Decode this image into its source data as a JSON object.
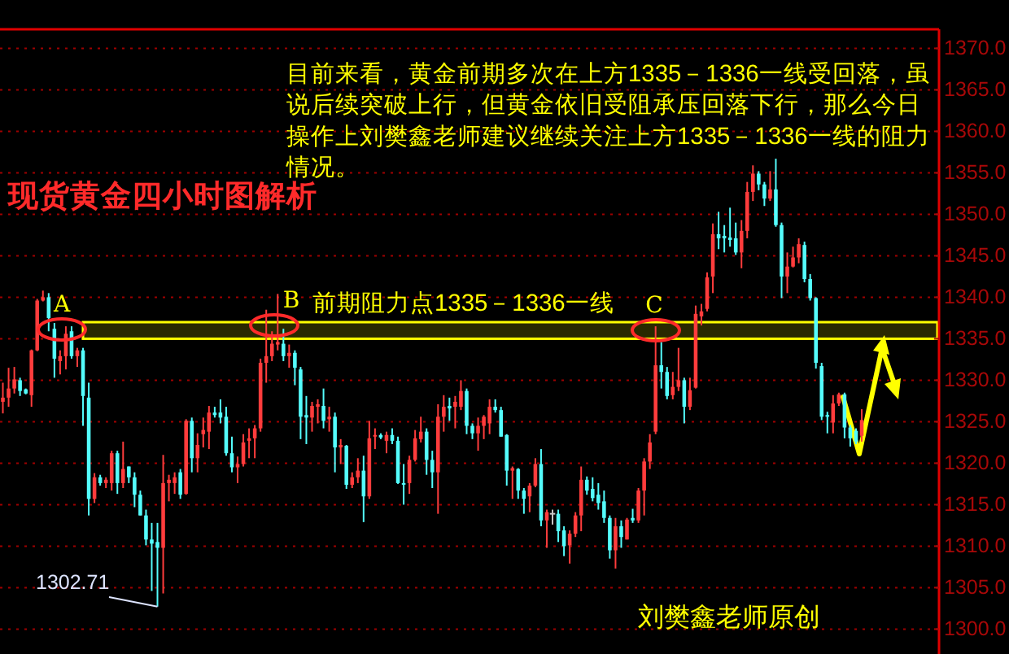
{
  "chart_data": {
    "type": "candlestick",
    "title": "现货黄金四小时图解析",
    "categories": [
      null,
      null,
      null,
      null,
      null,
      null,
      null,
      null,
      null,
      null,
      null,
      null,
      null,
      null,
      null,
      null,
      null,
      null,
      null,
      null,
      null,
      null,
      null,
      null,
      null,
      null,
      null,
      null,
      null,
      null,
      null,
      null,
      null,
      null,
      null,
      null,
      null,
      null,
      null,
      null,
      null,
      null,
      null,
      null,
      null,
      null,
      null,
      null,
      null,
      null,
      null,
      null,
      null,
      null,
      null,
      null,
      null,
      null,
      null,
      null,
      null,
      null,
      null,
      null,
      null,
      null,
      null,
      null,
      null,
      null,
      null,
      null,
      null,
      null,
      null,
      null,
      null,
      null,
      null,
      null,
      null,
      null,
      null,
      null,
      null,
      null,
      null,
      null,
      null,
      null,
      null,
      null,
      null,
      null,
      null,
      null,
      null,
      null,
      null,
      null,
      null,
      null,
      null,
      null,
      null,
      null,
      null,
      null,
      null,
      null,
      null,
      null,
      null,
      null,
      null,
      null,
      null,
      null,
      null,
      null,
      null,
      null,
      null,
      null,
      null,
      null,
      null,
      null,
      null,
      null,
      null,
      null,
      null,
      null,
      null,
      null,
      null,
      null,
      null,
      null,
      null,
      null,
      null,
      null,
      null,
      null,
      null,
      null,
      null,
      null,
      null,
      null,
      null,
      null,
      null,
      null,
      null,
      null,
      null,
      null,
      null,
      null,
      null,
      null
    ],
    "ohlc": [
      [
        1327.4,
        1329.7,
        1326.0,
        1327.9
      ],
      [
        1327.9,
        1331.5,
        1326.8,
        1329.0
      ],
      [
        1329.0,
        1331.6,
        1328.4,
        1330.1
      ],
      [
        1330.0,
        1330.3,
        1328.1,
        1328.7
      ],
      [
        1328.9,
        1329.0,
        1328.3,
        1328.4
      ],
      [
        1328.2,
        1333.7,
        1326.8,
        1333.6
      ],
      [
        1333.6,
        1339.8,
        1333.5,
        1339.6
      ],
      [
        1339.6,
        1340.8,
        1339.5,
        1340.0
      ],
      [
        1340.0,
        1340.5,
        1335.9,
        1337.5
      ],
      [
        1336.2,
        1336.9,
        1330.3,
        1332.6
      ],
      [
        1332.3,
        1333.6,
        1330.7,
        1332.9
      ],
      [
        1332.9,
        1336.5,
        1331.3,
        1335.6
      ],
      [
        1335.9,
        1336.5,
        1332.6,
        1332.9
      ],
      [
        1332.9,
        1333.9,
        1331.6,
        1333.6
      ],
      [
        1333.6,
        1333.9,
        1324.5,
        1328.1
      ],
      [
        1327.9,
        1329.7,
        1313.7,
        1315.7
      ],
      [
        1315.7,
        1318.8,
        1315.2,
        1318.3
      ],
      [
        1318.3,
        1318.6,
        1317.3,
        1317.6
      ],
      [
        1317.6,
        1318.3,
        1317.0,
        1318.0
      ],
      [
        1317.6,
        1321.5,
        1316.7,
        1321.2
      ],
      [
        1321.2,
        1321.5,
        1316.3,
        1317.6
      ],
      [
        1317.6,
        1322.6,
        1317.0,
        1319.3
      ],
      [
        1319.6,
        1319.6,
        1317.6,
        1318.3
      ],
      [
        1318.3,
        1318.9,
        1314.7,
        1316.2
      ],
      [
        1316.2,
        1316.7,
        1313.7,
        1313.7
      ],
      [
        1313.7,
        1314.4,
        1310.1,
        1310.8
      ],
      [
        1310.8,
        1312.8,
        1304.6,
        1310.3
      ],
      [
        1310.5,
        1312.8,
        1302.71,
        1309.8
      ],
      [
        1309.8,
        1321.0,
        1304.3,
        1317.6
      ],
      [
        1317.6,
        1318.6,
        1315.4,
        1318.0
      ],
      [
        1317.6,
        1318.9,
        1316.3,
        1318.3
      ],
      [
        1318.9,
        1319.3,
        1315.7,
        1316.2
      ],
      [
        1316.3,
        1325.3,
        1316.2,
        1325.1
      ],
      [
        1325.1,
        1325.5,
        1318.9,
        1320.6
      ],
      [
        1320.6,
        1323.6,
        1318.9,
        1322.2
      ],
      [
        1323.5,
        1325.5,
        1321.9,
        1324.0
      ],
      [
        1323.8,
        1326.9,
        1321.7,
        1326.1
      ],
      [
        1326.1,
        1326.8,
        1325.5,
        1325.8
      ],
      [
        1326.1,
        1327.7,
        1324.8,
        1325.5
      ],
      [
        1325.6,
        1326.8,
        1320.9,
        1321.2
      ],
      [
        1321.2,
        1323.2,
        1318.9,
        1319.5
      ],
      [
        1319.5,
        1320.8,
        1317.6,
        1319.9
      ],
      [
        1319.9,
        1323.5,
        1319.6,
        1322.5
      ],
      [
        1322.7,
        1324.2,
        1320.6,
        1323.0
      ],
      [
        1323.0,
        1324.6,
        1320.6,
        1324.2
      ],
      [
        1324.2,
        1332.6,
        1323.8,
        1332.1
      ],
      [
        1332.1,
        1338.5,
        1329.7,
        1332.9
      ],
      [
        1332.9,
        1335.9,
        1332.3,
        1334.4
      ],
      [
        1334.3,
        1340.4,
        1333.6,
        1334.6
      ],
      [
        1334.4,
        1336.2,
        1332.3,
        1332.9
      ],
      [
        1332.9,
        1334.3,
        1331.5,
        1333.3
      ],
      [
        1333.3,
        1333.6,
        1329.4,
        1331.5
      ],
      [
        1331.3,
        1331.6,
        1322.9,
        1325.6
      ],
      [
        1325.8,
        1328.1,
        1322.3,
        1325.5
      ],
      [
        1325.5,
        1327.4,
        1323.8,
        1326.9
      ],
      [
        1326.8,
        1327.7,
        1324.8,
        1327.1
      ],
      [
        1326.9,
        1329.0,
        1324.2,
        1325.1
      ],
      [
        1325.3,
        1326.8,
        1323.8,
        1325.6
      ],
      [
        1325.6,
        1326.1,
        1318.9,
        1321.9
      ],
      [
        1321.9,
        1322.9,
        1319.9,
        1322.2
      ],
      [
        1322.1,
        1322.2,
        1316.9,
        1317.4
      ],
      [
        1317.4,
        1318.9,
        1317.0,
        1318.3
      ],
      [
        1318.3,
        1320.6,
        1317.6,
        1319.1
      ],
      [
        1319.1,
        1320.9,
        1312.9,
        1316.0
      ],
      [
        1316.0,
        1325.1,
        1315.7,
        1323.0
      ],
      [
        1323.2,
        1324.2,
        1321.7,
        1323.4
      ],
      [
        1323.4,
        1323.6,
        1322.9,
        1323.1
      ],
      [
        1322.7,
        1323.8,
        1321.2,
        1323.4
      ],
      [
        1323.4,
        1324.2,
        1322.3,
        1322.7
      ],
      [
        1322.7,
        1323.2,
        1317.5,
        1317.6
      ],
      [
        1317.6,
        1319.9,
        1315.0,
        1317.5
      ],
      [
        1317.6,
        1320.9,
        1316.3,
        1320.4
      ],
      [
        1320.4,
        1324.0,
        1320.2,
        1323.0
      ],
      [
        1322.9,
        1325.6,
        1322.5,
        1323.8
      ],
      [
        1323.8,
        1324.2,
        1318.6,
        1320.4
      ],
      [
        1320.4,
        1321.5,
        1317.0,
        1318.9
      ],
      [
        1318.9,
        1327.1,
        1313.9,
        1325.6
      ],
      [
        1325.6,
        1328.2,
        1323.8,
        1326.8
      ],
      [
        1326.9,
        1327.9,
        1325.1,
        1326.6
      ],
      [
        1326.8,
        1328.1,
        1324.2,
        1327.4
      ],
      [
        1326.8,
        1330.0,
        1326.4,
        1328.7
      ],
      [
        1328.7,
        1329.0,
        1323.5,
        1324.5
      ],
      [
        1324.5,
        1324.8,
        1322.9,
        1323.6
      ],
      [
        1323.6,
        1325.5,
        1321.5,
        1324.5
      ],
      [
        1324.5,
        1325.8,
        1322.9,
        1325.6
      ],
      [
        1324.8,
        1327.7,
        1323.5,
        1326.8
      ],
      [
        1326.8,
        1327.7,
        1326.1,
        1326.4
      ],
      [
        1326.4,
        1326.8,
        1323.2,
        1323.2
      ],
      [
        1323.4,
        1323.5,
        1317.3,
        1319.1
      ],
      [
        1319.1,
        1319.6,
        1315.7,
        1319.4
      ],
      [
        1319.3,
        1319.4,
        1315.7,
        1316.7
      ],
      [
        1316.7,
        1317.0,
        1313.9,
        1315.7
      ],
      [
        1316.0,
        1317.6,
        1314.1,
        1317.3
      ],
      [
        1317.3,
        1320.6,
        1317.1,
        1319.9
      ],
      [
        1319.9,
        1321.7,
        1312.4,
        1313.1
      ],
      [
        1313.1,
        1314.4,
        1309.8,
        1314.1
      ],
      [
        1313.9,
        1314.4,
        1312.6,
        1313.9
      ],
      [
        1313.9,
        1314.4,
        1310.5,
        1311.8
      ],
      [
        1311.9,
        1312.4,
        1308.8,
        1310.0
      ],
      [
        1310.1,
        1311.9,
        1307.9,
        1311.5
      ],
      [
        1311.5,
        1314.1,
        1311.1,
        1313.7
      ],
      [
        1313.7,
        1319.6,
        1311.8,
        1318.0
      ],
      [
        1318.0,
        1318.4,
        1316.2,
        1316.7
      ],
      [
        1316.9,
        1318.3,
        1315.4,
        1315.8
      ],
      [
        1316.2,
        1317.6,
        1314.4,
        1315.2
      ],
      [
        1315.4,
        1316.7,
        1312.8,
        1313.4
      ],
      [
        1313.4,
        1313.7,
        1308.5,
        1309.5
      ],
      [
        1309.5,
        1313.4,
        1307.3,
        1312.4
      ],
      [
        1312.4,
        1313.1,
        1309.8,
        1311.1
      ],
      [
        1310.8,
        1313.4,
        1310.8,
        1313.2
      ],
      [
        1313.4,
        1314.5,
        1312.8,
        1313.1
      ],
      [
        1313.1,
        1317.0,
        1312.8,
        1316.7
      ],
      [
        1316.7,
        1320.6,
        1313.7,
        1320.2
      ],
      [
        1320.2,
        1323.5,
        1319.3,
        1322.5
      ],
      [
        1323.8,
        1336.5,
        1323.5,
        1331.8
      ],
      [
        1331.8,
        1334.6,
        1329.0,
        1331.0
      ],
      [
        1331.0,
        1331.6,
        1327.7,
        1328.1
      ],
      [
        1328.2,
        1331.0,
        1327.7,
        1329.2
      ],
      [
        1329.2,
        1333.9,
        1328.7,
        1330.0
      ],
      [
        1330.0,
        1330.3,
        1324.8,
        1326.8
      ],
      [
        1326.8,
        1330.3,
        1326.4,
        1328.8
      ],
      [
        1329.1,
        1339.0,
        1329.0,
        1338.0
      ],
      [
        1337.7,
        1339.2,
        1336.6,
        1338.3
      ],
      [
        1338.6,
        1343.0,
        1338.3,
        1342.4
      ],
      [
        1342.5,
        1348.9,
        1340.5,
        1347.6
      ],
      [
        1347.6,
        1350.3,
        1345.8,
        1347.1
      ],
      [
        1347.4,
        1348.7,
        1345.4,
        1347.1
      ],
      [
        1347.2,
        1350.8,
        1346.1,
        1346.9
      ],
      [
        1347.1,
        1349.0,
        1345.1,
        1345.4
      ],
      [
        1345.4,
        1349.3,
        1343.5,
        1348.0
      ],
      [
        1348.0,
        1353.9,
        1347.1,
        1352.7
      ],
      [
        1352.7,
        1355.9,
        1351.6,
        1354.9
      ],
      [
        1354.9,
        1355.2,
        1352.9,
        1353.6
      ],
      [
        1353.6,
        1353.9,
        1351.0,
        1351.9
      ],
      [
        1351.9,
        1355.2,
        1351.6,
        1353.0
      ],
      [
        1353.0,
        1356.7,
        1348.5,
        1348.7
      ],
      [
        1348.7,
        1349.0,
        1339.9,
        1342.5
      ],
      [
        1342.5,
        1345.4,
        1340.5,
        1343.7
      ],
      [
        1343.7,
        1346.1,
        1343.6,
        1344.8
      ],
      [
        1344.8,
        1347.1,
        1344.1,
        1346.4
      ],
      [
        1346.3,
        1346.7,
        1341.8,
        1342.2
      ],
      [
        1342.2,
        1342.8,
        1339.6,
        1339.9
      ],
      [
        1339.9,
        1340.0,
        1331.4,
        1332.1
      ],
      [
        1331.7,
        1332.1,
        1325.2,
        1325.6
      ],
      [
        1325.8,
        1326.2,
        1323.6,
        1325.6
      ],
      [
        1324.9,
        1328.2,
        1323.6,
        1327.2
      ],
      [
        1327.2,
        1328.5,
        1326.9,
        1328.3
      ],
      [
        1328.3,
        1328.5,
        1323.0,
        1324.3
      ],
      [
        1324.3,
        1324.6,
        1322.0,
        1323.0
      ],
      [
        1323.9,
        1324.2,
        1322.3,
        1322.6
      ],
      [
        1323.3,
        1326.5,
        1322.6,
        1325.2
      ],
      null,
      null,
      null,
      null,
      null,
      null,
      null,
      null,
      null,
      null,
      null,
      null,
      null
    ],
    "ylim": [
      1297,
      1372.3
    ],
    "yticks": [
      {
        "value": 1300,
        "label": "1300.0"
      },
      {
        "value": 1305,
        "label": "1305.0"
      },
      {
        "value": 1310,
        "label": "1310.0"
      },
      {
        "value": 1315,
        "label": "1315.0"
      },
      {
        "value": 1320,
        "label": "1320.0"
      },
      {
        "value": 1325,
        "label": "1325.0"
      },
      {
        "value": 1330,
        "label": "1330.0"
      },
      {
        "value": 1335,
        "label": "1335.0"
      },
      {
        "value": 1340,
        "label": "1340.0"
      },
      {
        "value": 1345,
        "label": "1345.0"
      },
      {
        "value": 1350,
        "label": "1350.0"
      },
      {
        "value": 1355,
        "label": "1355.0"
      },
      {
        "value": 1360,
        "label": "1360.0"
      },
      {
        "value": 1365,
        "label": "1365.0"
      },
      {
        "value": 1370,
        "label": "1370.0"
      }
    ],
    "tick_labels": "y",
    "grid": "y",
    "bands": [
      {
        "axis": "y",
        "from": 1335,
        "to": 1337,
        "label": "前期阻力点1335－1336一线",
        "color": "#ffff00"
      }
    ],
    "annotations": [
      "目前来看，黄金前期多次在上方1335－1336一线受回落，虽说后续突破上行，但黄金依旧受阻承压回落下行，那么今日操作上刘樊鑫老师建议继续关注上方1335－1336一线的阻力情况。",
      "A",
      "B",
      "C",
      "1302.71",
      "刘樊鑫老师原创"
    ]
  }
}
